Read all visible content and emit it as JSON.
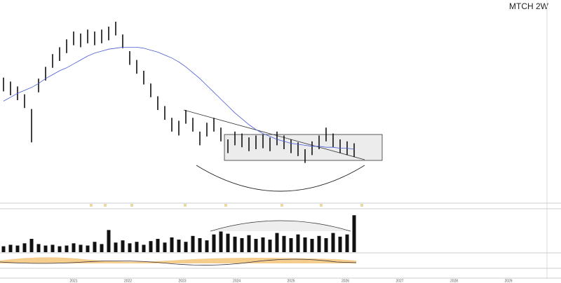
{
  "chart_data": {
    "type": "ohlc",
    "title": "MTCH 2W",
    "x_labels": [
      "2021",
      "2022",
      "2023",
      "2024",
      "2025",
      "2026",
      "2027",
      "2028",
      "2029"
    ],
    "ylim": [
      0,
      200
    ],
    "series": [
      {
        "color": "#111111",
        "high": [
          128,
          124,
          119,
          111,
          96,
          127,
          139,
          152,
          159,
          167,
          175,
          173,
          177,
          175,
          177,
          180,
          185,
          172,
          155,
          146,
          135,
          122,
          109,
          99,
          87,
          84,
          95,
          87,
          73,
          82,
          87,
          77,
          65,
          73,
          71,
          67,
          69,
          70,
          67,
          73,
          69,
          65,
          62,
          55,
          63,
          69,
          77,
          71,
          65,
          63,
          61
        ],
        "low": [
          114,
          110,
          105,
          97,
          62,
          113,
          125,
          138,
          145,
          153,
          161,
          159,
          163,
          161,
          163,
          166,
          171,
          158,
          141,
          132,
          121,
          108,
          95,
          85,
          73,
          69,
          81,
          73,
          59,
          68,
          73,
          63,
          51,
          59,
          57,
          53,
          55,
          56,
          53,
          59,
          55,
          51,
          48,
          41,
          49,
          55,
          63,
          57,
          51,
          49,
          47
        ]
      },
      {
        "color": "#4a5bd6",
        "values": [
          104,
          108,
          112,
          115,
          118,
          122,
          127,
          131,
          135,
          138,
          142,
          146,
          150,
          153,
          155,
          157,
          158,
          159,
          159,
          159,
          158,
          156,
          154,
          151,
          148,
          144,
          139,
          133,
          127,
          120,
          113,
          106,
          99,
          92,
          86,
          80,
          75,
          71,
          68,
          65,
          63,
          61,
          60,
          59,
          58,
          58,
          57,
          57,
          56,
          56,
          55
        ]
      }
    ],
    "volume": {
      "color": "#111111",
      "ylim": [
        0,
        55
      ],
      "values": [
        8,
        10,
        9,
        12,
        18,
        11,
        9,
        10,
        8,
        9,
        12,
        10,
        9,
        14,
        11,
        30,
        13,
        16,
        12,
        14,
        10,
        15,
        18,
        13,
        20,
        17,
        14,
        22,
        19,
        16,
        24,
        28,
        25,
        21,
        19,
        23,
        18,
        20,
        17,
        26,
        22,
        19,
        24,
        20,
        18,
        22,
        19,
        26,
        21,
        24,
        50
      ]
    }
  }
}
